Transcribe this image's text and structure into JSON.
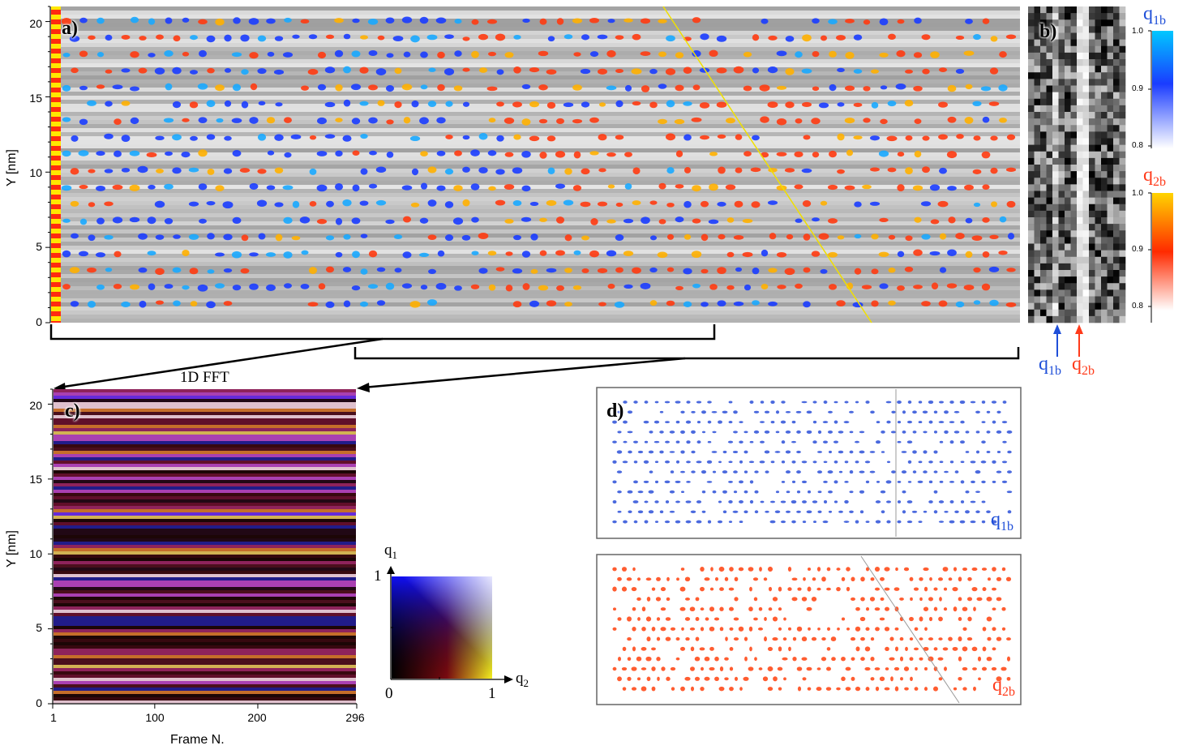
{
  "panel_a": {
    "label": "a)",
    "ylabel": "Y [nm]",
    "yticks": [
      "0",
      "5",
      "10",
      "15",
      "20"
    ],
    "ylim": [
      0,
      21
    ]
  },
  "panel_b": {
    "label": "b)",
    "q1_arrow_label": "q",
    "q1_arrow_sub": "1b",
    "q2_arrow_label": "q",
    "q2_arrow_sub": "2b"
  },
  "colorbar_q1": {
    "title": "q",
    "title_sub": "1b",
    "ticks": [
      "1.0",
      "0.9",
      "0.8"
    ],
    "colors": [
      "#00c8ff",
      "#1a3cff",
      "#ffffff"
    ]
  },
  "colorbar_q2": {
    "title": "q",
    "title_sub": "2b",
    "ticks": [
      "1.0",
      "0.9",
      "0.8"
    ],
    "colors": [
      "#ffd400",
      "#ff2a00",
      "#ffffff"
    ]
  },
  "panel_c": {
    "label": "c)",
    "title": "1D FFT",
    "ylabel": "Y [nm]",
    "xlabel": "Frame N.",
    "xticks": [
      "1",
      "100",
      "200",
      "296"
    ],
    "yticks": [
      "0",
      "5",
      "10",
      "15",
      "20"
    ],
    "xlim": [
      1,
      296
    ],
    "ylim": [
      0,
      21
    ]
  },
  "color_key": {
    "y_axis_label": "q",
    "y_axis_sub": "1",
    "x_axis_label": "q",
    "x_axis_sub": "2",
    "origin_label": "0",
    "x_max_label": "1",
    "y_max_label": "1"
  },
  "panel_d": {
    "label": "d)",
    "top_label": "q",
    "top_sub": "1b",
    "bottom_label": "q",
    "bottom_sub": "2b"
  },
  "colors": {
    "blue_accent": "#1f4fd8",
    "red_accent": "#ff3a1a",
    "yellow_line": "#f0e000"
  }
}
